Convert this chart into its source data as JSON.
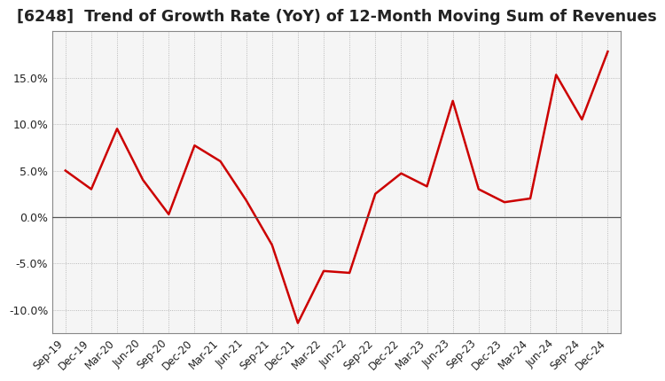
{
  "title": "[6248]  Trend of Growth Rate (YoY) of 12-Month Moving Sum of Revenues",
  "title_fontsize": 12.5,
  "line_color": "#cc0000",
  "background_color": "#ffffff",
  "grid_color": "#aaaaaa",
  "plot_bg_color": "#f5f5f5",
  "ylim": [
    -0.125,
    0.2
  ],
  "yticks": [
    -0.1,
    -0.05,
    0.0,
    0.05,
    0.1,
    0.15
  ],
  "x_labels": [
    "Sep-19",
    "Dec-19",
    "Mar-20",
    "Jun-20",
    "Sep-20",
    "Dec-20",
    "Mar-21",
    "Jun-21",
    "Sep-21",
    "Dec-21",
    "Mar-22",
    "Jun-22",
    "Sep-22",
    "Dec-22",
    "Mar-23",
    "Jun-23",
    "Sep-23",
    "Dec-23",
    "Mar-24",
    "Jun-24",
    "Sep-24",
    "Dec-24"
  ],
  "y_values": [
    0.05,
    0.03,
    0.095,
    0.04,
    0.003,
    0.077,
    0.06,
    0.018,
    -0.03,
    -0.114,
    -0.058,
    -0.06,
    0.025,
    0.047,
    0.033,
    0.125,
    0.03,
    0.016,
    0.02,
    0.153,
    0.105,
    0.178
  ]
}
